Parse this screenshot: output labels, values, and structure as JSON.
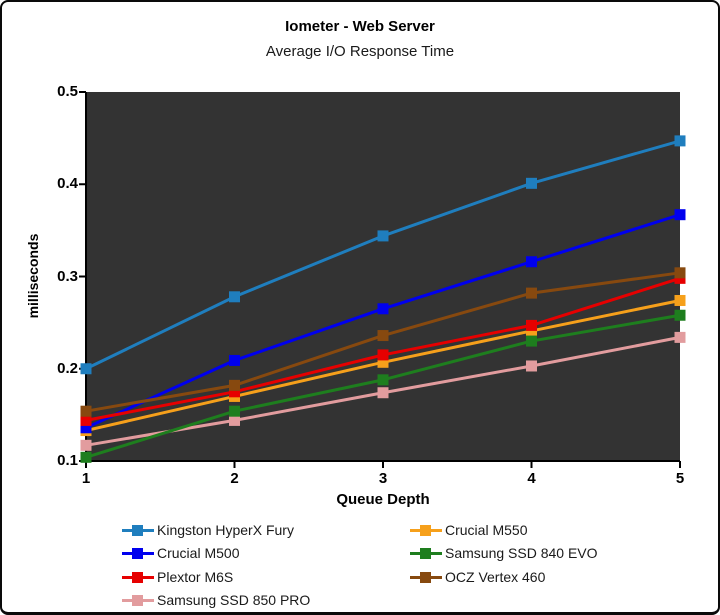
{
  "window": {
    "background": "#FFFFFF",
    "border_color": "#0A0A0A"
  },
  "chart_data": {
    "type": "line",
    "title": "Iometeter - Web Server",
    "subtitle": "Average I/O Response Time",
    "xlabel": "Queue Depth",
    "ylabel": "milliseconds",
    "x_categories": [
      "1",
      "2",
      "3",
      "4",
      "5"
    ],
    "xtick_labels": [
      "1",
      "2",
      "3",
      "4",
      "5"
    ],
    "ylim": [
      0.1,
      0.5
    ],
    "yticks": [
      0.1,
      0.2,
      0.3,
      0.4,
      0.5
    ],
    "ytick_labels": [
      "0.1",
      "0.2",
      "0.3",
      "0.4",
      "0.5"
    ],
    "grid": false,
    "plot_background": "#333333",
    "marker": "square",
    "legend_position": "bottom",
    "legend_columns": [
      [
        0,
        1,
        2,
        3
      ],
      [
        4,
        5,
        6
      ]
    ],
    "draw_order": [
      4,
      3,
      5,
      1,
      2,
      6,
      0
    ],
    "series": [
      {
        "name": "Kingston HyperX Fury",
        "color": "#1F7EBE",
        "values": [
          0.2,
          0.278,
          0.344,
          0.401,
          0.447
        ]
      },
      {
        "name": "Crucial M500",
        "color": "#0000EE",
        "values": [
          0.136,
          0.209,
          0.265,
          0.316,
          0.367
        ]
      },
      {
        "name": "Plextor M6S",
        "color": "#E60000",
        "values": [
          0.144,
          0.175,
          0.215,
          0.247,
          0.298
        ]
      },
      {
        "name": "Samsung SSD 850 PRO",
        "color": "#E29C9E",
        "values": [
          0.117,
          0.144,
          0.174,
          0.203,
          0.234
        ]
      },
      {
        "name": "Crucial M550",
        "color": "#F6A01B",
        "values": [
          0.133,
          0.17,
          0.207,
          0.241,
          0.274
        ]
      },
      {
        "name": "Samsung SSD 840 EVO",
        "color": "#1E7E1E",
        "values": [
          0.104,
          0.154,
          0.188,
          0.23,
          0.258
        ]
      },
      {
        "name": "OCZ Vertex 460",
        "color": "#87490F",
        "values": [
          0.154,
          0.182,
          0.236,
          0.282,
          0.304
        ]
      }
    ]
  }
}
